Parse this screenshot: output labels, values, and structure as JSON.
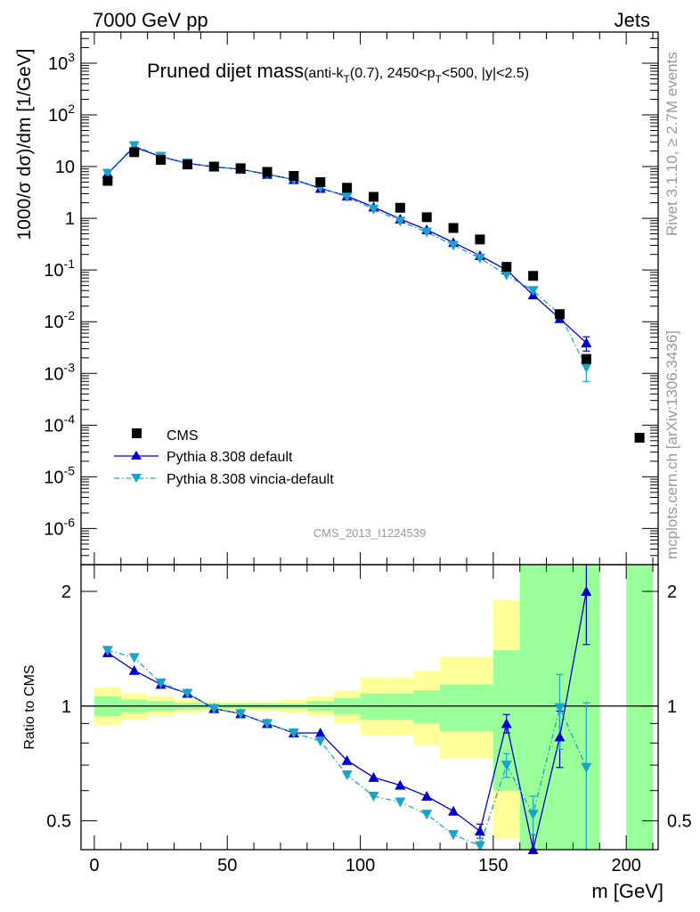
{
  "header": {
    "left": "7000 GeV pp",
    "right": "Jets"
  },
  "side_labels": {
    "rivet": "Rivet 3.1.10, ≥ 2.7M events",
    "mcplots": "mcplots.cern.ch [arXiv:1306.3436]"
  },
  "watermark": "CMS_2013_I1224539",
  "colors": {
    "cms": "#000000",
    "default": "#0000cc",
    "vincia": "#1aa3c8",
    "band_green": "#99ff99",
    "band_yellow": "#ffff99"
  },
  "chart_data": [
    {
      "type": "scatter",
      "title_main": "Pruned dijet mass",
      "title_paren": "(anti-k",
      "title_sub_T": "T",
      "title_mid": "(0.7), 2450<p",
      "title_sub_T2": "T",
      "title_end": "<500, |y|<2.5)",
      "ylabel": "1000/σ dσ)/dm [1/GeV]",
      "yscale": "log",
      "ylim": [
        2e-07,
        4000
      ],
      "xlim": [
        -5,
        212
      ],
      "ytick_labels": [
        "10^-6",
        "10^-5",
        "10^-4",
        "10^-3",
        "10^-2",
        "10^-1",
        "1",
        "10",
        "10^2",
        "10^3"
      ],
      "legend_position": "bottom-left",
      "series": [
        {
          "name": "CMS",
          "marker": "square",
          "x": [
            5,
            15,
            25,
            35,
            45,
            55,
            65,
            75,
            85,
            95,
            105,
            115,
            125,
            135,
            145,
            155,
            165,
            175,
            185,
            205
          ],
          "y": [
            5.3,
            19,
            13.5,
            11,
            10,
            9.3,
            7.9,
            6.6,
            5.0,
            3.9,
            2.6,
            1.6,
            1.05,
            0.65,
            0.39,
            0.115,
            0.077,
            0.014,
            0.0019,
            5.7e-05
          ]
        },
        {
          "name": "Pythia 8.308 default",
          "marker": "triangle-up",
          "x": [
            5,
            15,
            25,
            35,
            45,
            55,
            65,
            75,
            85,
            95,
            105,
            115,
            125,
            135,
            145,
            155,
            165,
            175,
            185
          ],
          "y": [
            7.3,
            24,
            15.5,
            11.6,
            9.9,
            8.9,
            7.1,
            5.6,
            3.8,
            2.7,
            1.65,
            0.97,
            0.6,
            0.34,
            0.19,
            0.1,
            0.033,
            0.0115,
            0.0039
          ],
          "yerr": [
            0,
            0,
            0,
            0,
            0,
            0,
            0,
            0,
            0,
            0,
            0,
            0,
            0,
            0,
            0,
            0,
            0,
            0.0012,
            0.0012
          ]
        },
        {
          "name": "Pythia 8.308 vincia-default",
          "marker": "triangle-down",
          "x": [
            5,
            15,
            25,
            35,
            45,
            55,
            65,
            75,
            85,
            95,
            105,
            115,
            125,
            135,
            145,
            155,
            165,
            175,
            185
          ],
          "y": [
            7.4,
            25.5,
            15.8,
            11.7,
            9.9,
            8.9,
            7.2,
            5.6,
            3.9,
            2.6,
            1.5,
            0.88,
            0.54,
            0.3,
            0.17,
            0.08,
            0.04,
            0.014,
            0.0013
          ],
          "yerr": [
            0,
            0,
            0,
            0,
            0,
            0,
            0,
            0,
            0,
            0,
            0,
            0,
            0,
            0,
            0,
            0,
            0,
            0.003,
            0.0006
          ]
        }
      ]
    },
    {
      "type": "line",
      "ylabel": "Ratio to CMS",
      "xlabel": "m [GeV]",
      "yscale": "log",
      "ylim": [
        0.42,
        2.35
      ],
      "xlim": [
        -5,
        212
      ],
      "ytick_labels": [
        "0.5",
        "1",
        "2"
      ],
      "xtick_labels": [
        "0",
        "50",
        "100",
        "150",
        "200"
      ],
      "reference_line": 1,
      "bands": {
        "edges": [
          0,
          10,
          20,
          30,
          40,
          50,
          60,
          70,
          80,
          90,
          100,
          110,
          120,
          130,
          140,
          150,
          160,
          170,
          180,
          190,
          200,
          210
        ],
        "green_low": [
          0.94,
          0.96,
          0.97,
          0.98,
          0.985,
          0.985,
          0.985,
          0.985,
          0.97,
          0.95,
          0.92,
          0.92,
          0.9,
          0.86,
          0.86,
          0.6,
          0.35,
          0.35,
          0.35,
          null,
          0.35
        ],
        "green_high": [
          1.06,
          1.04,
          1.03,
          1.02,
          1.015,
          1.015,
          1.015,
          1.015,
          1.03,
          1.05,
          1.08,
          1.08,
          1.1,
          1.14,
          1.14,
          1.4,
          2.35,
          2.35,
          2.35,
          null,
          2.35
        ],
        "yellow_low": [
          0.89,
          0.92,
          0.94,
          0.96,
          0.97,
          0.97,
          0.97,
          0.96,
          0.94,
          0.9,
          0.84,
          0.84,
          0.79,
          0.73,
          0.73,
          0.45,
          0.35,
          0.35,
          0.35,
          null,
          0.35
        ],
        "yellow_high": [
          1.12,
          1.08,
          1.06,
          1.04,
          1.03,
          1.03,
          1.03,
          1.04,
          1.06,
          1.1,
          1.19,
          1.19,
          1.24,
          1.35,
          1.35,
          1.9,
          2.35,
          2.35,
          2.35,
          null,
          2.35
        ]
      },
      "series": [
        {
          "name": "Pythia 8.308 default",
          "x": [
            5,
            15,
            25,
            35,
            45,
            55,
            65,
            75,
            85,
            95,
            105,
            115,
            125,
            135,
            145,
            155,
            165,
            175,
            185
          ],
          "y": [
            1.38,
            1.24,
            1.14,
            1.08,
            0.985,
            0.955,
            0.9,
            0.85,
            0.85,
            0.72,
            0.65,
            0.62,
            0.58,
            0.53,
            0.47,
            0.9,
            0.42,
            0.83,
            2.0
          ],
          "yerr": [
            0,
            0,
            0,
            0,
            0,
            0,
            0,
            0,
            0,
            0,
            0,
            0,
            0,
            0,
            0.02,
            0.05,
            0.04,
            0.14,
            0.55
          ]
        },
        {
          "name": "Pythia 8.308 vincia-default",
          "x": [
            5,
            15,
            25,
            35,
            45,
            55,
            65,
            75,
            85,
            95,
            105,
            115,
            125,
            135,
            145,
            155,
            165,
            175,
            185
          ],
          "y": [
            1.4,
            1.34,
            1.15,
            1.08,
            0.985,
            0.955,
            0.9,
            0.85,
            0.81,
            0.66,
            0.58,
            0.56,
            0.52,
            0.46,
            0.43,
            0.7,
            0.52,
            0.99,
            0.69
          ],
          "yerr": [
            0,
            0,
            0,
            0,
            0,
            0,
            0,
            0,
            0,
            0,
            0,
            0,
            0,
            0,
            0.02,
            0.05,
            0.06,
            0.22,
            0.33
          ]
        }
      ]
    }
  ]
}
